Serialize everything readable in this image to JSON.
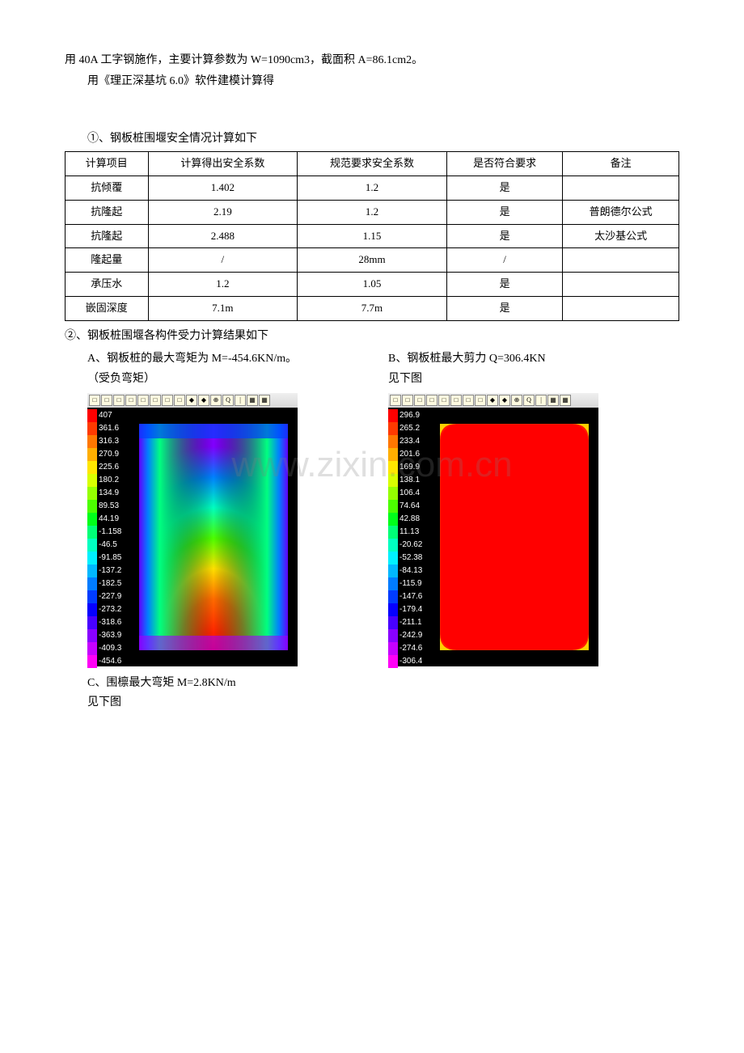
{
  "text": {
    "intro_line1": "用 40A 工字钢施作，主要计算参数为 W=1090cm3，截面积 A=86.1cm2。",
    "intro_line2": "用《理正深基坑 6.0》软件建模计算得",
    "section1_heading": "①、钢板桩围堰安全情况计算如下",
    "section2_heading": "②、钢板桩围堰各构件受力计算结果如下",
    "colA_line1": "A、钢板桩的最大弯矩为 M=-454.6KN/m。",
    "colA_line2": "（受负弯矩）",
    "colB_line1": "B、钢板桩最大剪力 Q=306.4KN",
    "colB_line2": "见下图",
    "colC_line1": "C、围檩最大弯矩 M=2.8KN/m",
    "colC_line2": "见下图"
  },
  "safety_table": {
    "columns": [
      "计算项目",
      "计算得出安全系数",
      "规范要求安全系数",
      "是否符合要求",
      "备注"
    ],
    "rows": [
      [
        "抗倾覆",
        "1.402",
        "1.2",
        "是",
        ""
      ],
      [
        "抗隆起",
        "2.19",
        "1.2",
        "是",
        "普朗德尔公式"
      ],
      [
        "抗隆起",
        "2.488",
        "1.15",
        "是",
        "太沙基公式"
      ],
      [
        "隆起量",
        "/",
        "28mm",
        "/",
        ""
      ],
      [
        "承压水",
        "1.2",
        "1.05",
        "是",
        ""
      ],
      [
        "嵌固深度",
        "7.1m",
        "7.7m",
        "是",
        ""
      ]
    ]
  },
  "watermark": "www.zixin.com.cn",
  "toolbar_icons": [
    "□",
    "□",
    "□",
    "□",
    "□",
    "□",
    "□",
    "□",
    "◆",
    "◆",
    "⊕",
    "Q",
    "|",
    "▦",
    "▦"
  ],
  "heatmapA": {
    "legend": [
      {
        "v": "407",
        "c": "#ff0000"
      },
      {
        "v": "361.6",
        "c": "#ff3a00"
      },
      {
        "v": "316.3",
        "c": "#ff7700"
      },
      {
        "v": "270.9",
        "c": "#ffae00"
      },
      {
        "v": "225.6",
        "c": "#ffe600"
      },
      {
        "v": "180.2",
        "c": "#d8ff00"
      },
      {
        "v": "134.9",
        "c": "#95ff00"
      },
      {
        "v": "89.53",
        "c": "#4cff00"
      },
      {
        "v": "44.19",
        "c": "#00ff1a"
      },
      {
        "v": "-1.158",
        "c": "#00ff77"
      },
      {
        "v": "-46.5",
        "c": "#00ffc1"
      },
      {
        "v": "-91.85",
        "c": "#00f1ff"
      },
      {
        "v": "-137.2",
        "c": "#00b8ff"
      },
      {
        "v": "-182.5",
        "c": "#007cff"
      },
      {
        "v": "-227.9",
        "c": "#003cff"
      },
      {
        "v": "-273.2",
        "c": "#0600ff"
      },
      {
        "v": "-318.6",
        "c": "#4800ff"
      },
      {
        "v": "-363.9",
        "c": "#8900ff"
      },
      {
        "v": "-409.3",
        "c": "#c600ff"
      },
      {
        "v": "-454.6",
        "c": "#ff00f6"
      }
    ]
  },
  "heatmapB": {
    "legend": [
      {
        "v": "296.9",
        "c": "#ff0000"
      },
      {
        "v": "265.2",
        "c": "#ff3a00"
      },
      {
        "v": "233.4",
        "c": "#ff7700"
      },
      {
        "v": "201.6",
        "c": "#ffae00"
      },
      {
        "v": "169.9",
        "c": "#ffe600"
      },
      {
        "v": "138.1",
        "c": "#d8ff00"
      },
      {
        "v": "106.4",
        "c": "#95ff00"
      },
      {
        "v": "74.64",
        "c": "#4cff00"
      },
      {
        "v": "42.88",
        "c": "#00ff1a"
      },
      {
        "v": "11.13",
        "c": "#00ff77"
      },
      {
        "v": "-20.62",
        "c": "#00ffc1"
      },
      {
        "v": "-52.38",
        "c": "#00f1ff"
      },
      {
        "v": "-84.13",
        "c": "#00b8ff"
      },
      {
        "v": "-115.9",
        "c": "#007cff"
      },
      {
        "v": "-147.6",
        "c": "#003cff"
      },
      {
        "v": "-179.4",
        "c": "#0600ff"
      },
      {
        "v": "-211.1",
        "c": "#4800ff"
      },
      {
        "v": "-242.9",
        "c": "#8900ff"
      },
      {
        "v": "-274.6",
        "c": "#c600ff"
      },
      {
        "v": "-306.4",
        "c": "#ff00f6"
      }
    ]
  }
}
